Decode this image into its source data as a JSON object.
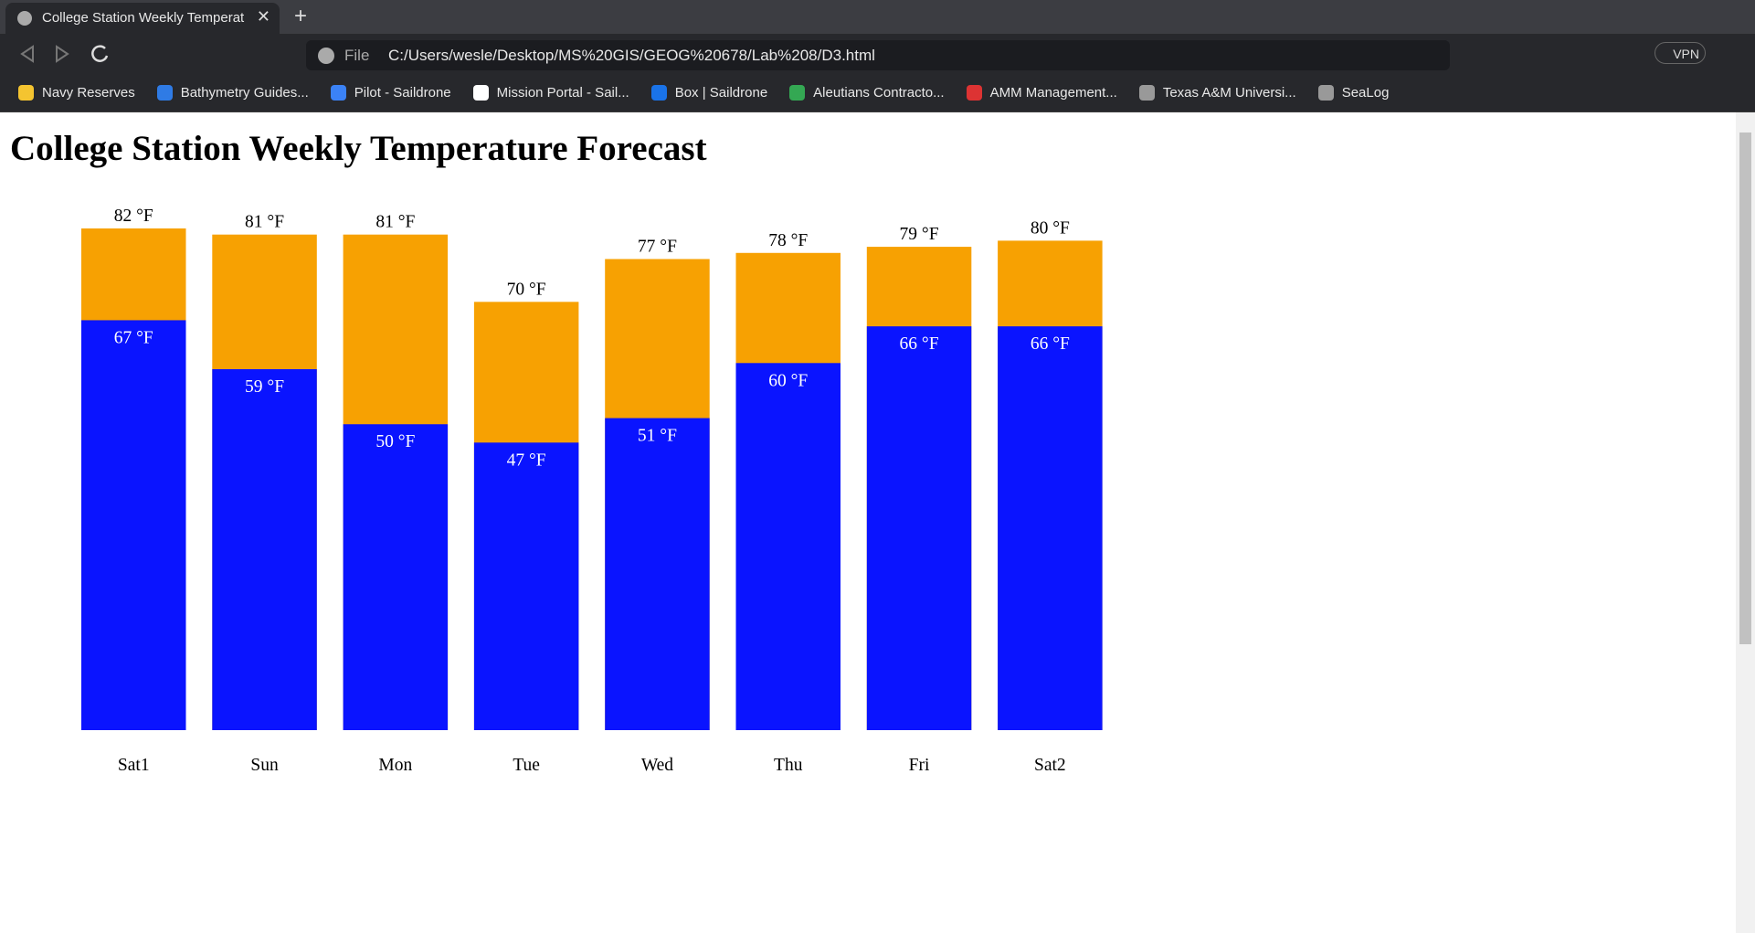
{
  "browser": {
    "tab_title": "College Station Weekly Temperat",
    "address_prefix": "File",
    "url": "C:/Users/wesle/Desktop/MS%20GIS/GEOG%20678/Lab%208/D3.html",
    "vpn": "VPN",
    "bookmarks": [
      "Navy Reserves",
      "Bathymetry Guides...",
      "Pilot - Saildrone",
      "Mission Portal - Sail...",
      "Box | Saildrone",
      "Aleutians Contracto...",
      "AMM Management...",
      "Texas A&M Universi...",
      "SeaLog"
    ]
  },
  "chart_data": {
    "type": "bar",
    "title": "College Station Weekly Temperature Forecast",
    "categories": [
      "Sat1",
      "Sun",
      "Mon",
      "Tue",
      "Wed",
      "Thu",
      "Fri",
      "Sat2"
    ],
    "series": [
      {
        "color": "#f7a102",
        "values": [
          82,
          81,
          81,
          70,
          77,
          78,
          79,
          80
        ],
        "value_labels": [
          "82 °F",
          "81 °F",
          "81 °F",
          "70 °F",
          "77 °F",
          "78 °F",
          "79 °F",
          "80 °F"
        ]
      },
      {
        "color": "#0a14ff",
        "values": [
          67,
          59,
          50,
          47,
          51,
          60,
          66,
          66
        ],
        "value_labels": [
          "67 °F",
          "59 °F",
          "50 °F",
          "47 °F",
          "51 °F",
          "60 °F",
          "66 °F",
          "66 °F"
        ]
      }
    ]
  }
}
